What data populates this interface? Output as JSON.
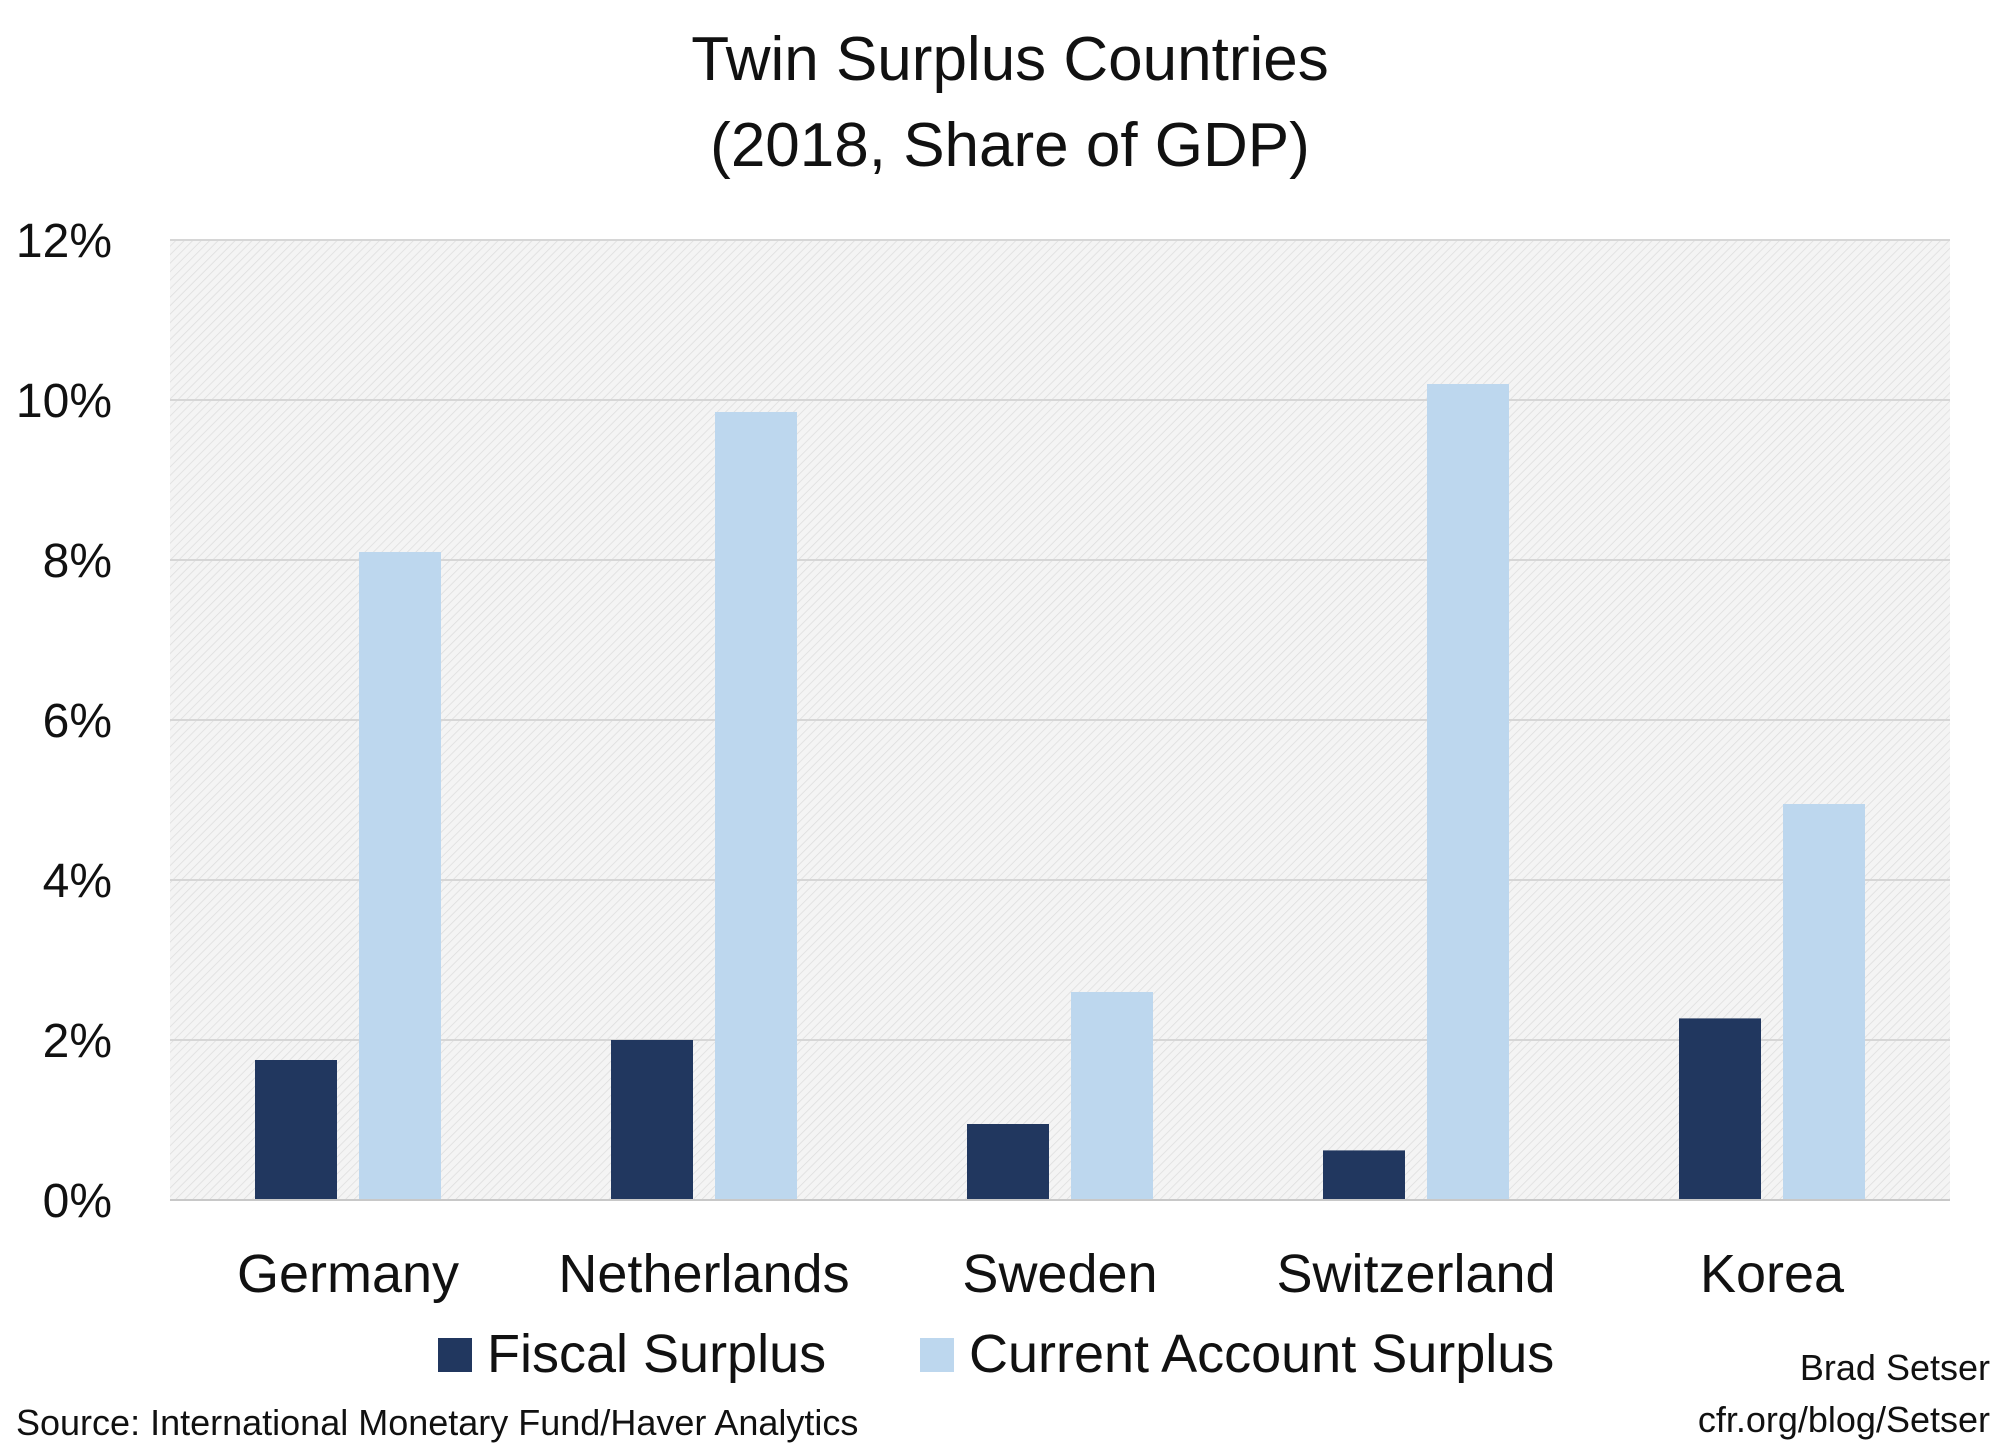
{
  "chart_data": {
    "type": "bar",
    "title": "Twin Surplus Countries",
    "subtitle": "(2018, Share of GDP)",
    "categories": [
      "Germany",
      "Netherlands",
      "Sweden",
      "Switzerland",
      "Korea"
    ],
    "series": [
      {
        "name": "Fiscal Surplus",
        "color": "#21375f",
        "values": [
          1.75,
          2.0,
          0.95,
          0.62,
          2.27
        ]
      },
      {
        "name": "Current Account Surplus",
        "color": "#bdd7ee",
        "values": [
          8.1,
          9.85,
          2.6,
          10.2,
          4.95
        ]
      }
    ],
    "y_ticks": [
      "0%",
      "2%",
      "4%",
      "6%",
      "8%",
      "10%",
      "12%"
    ],
    "ylim": [
      0,
      12
    ],
    "grid": true,
    "legend_position": "bottom"
  },
  "source_note": "Source: International Monetary Fund/Haver Analytics",
  "author": "Brad Setser",
  "author_url": "cfr.org/blog/Setser"
}
